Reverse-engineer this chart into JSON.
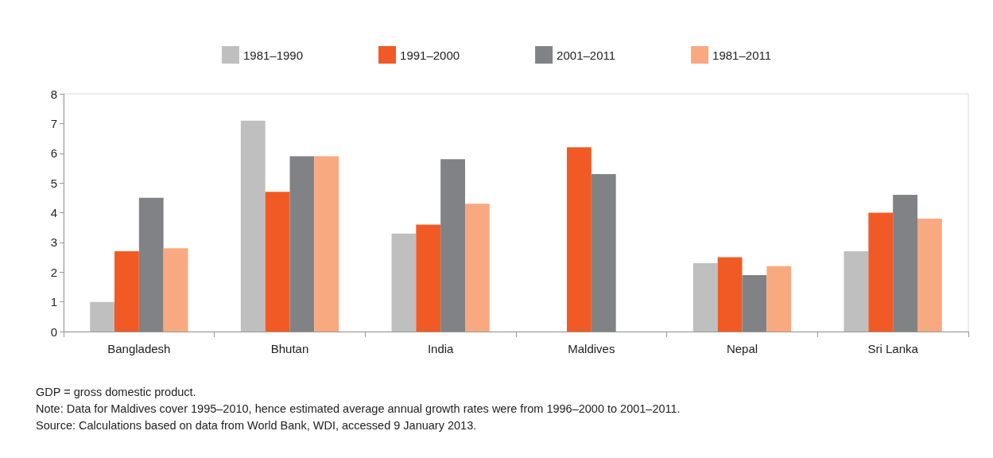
{
  "chart_data": {
    "type": "bar",
    "categories": [
      "Bangladesh",
      "Bhutan",
      "India",
      "Maldives",
      "Nepal",
      "Sri Lanka"
    ],
    "series": [
      {
        "name": "1981–1990",
        "color": "#bfbfc0",
        "values": [
          1.0,
          7.1,
          3.3,
          null,
          2.3,
          2.7
        ]
      },
      {
        "name": "1991–2000",
        "color": "#f15a24",
        "values": [
          2.7,
          4.7,
          3.6,
          6.2,
          2.5,
          4.0
        ]
      },
      {
        "name": "2001–2011",
        "color": "#818285",
        "values": [
          4.5,
          5.9,
          5.8,
          5.3,
          1.9,
          4.6
        ]
      },
      {
        "name": "1981–2011",
        "color": "#f9a980",
        "values": [
          2.8,
          5.9,
          4.3,
          null,
          2.2,
          3.8
        ]
      }
    ],
    "ylim": [
      0,
      8
    ],
    "yticks": [
      0,
      1,
      2,
      3,
      4,
      5,
      6,
      7,
      8
    ],
    "grid": false,
    "legend": "top",
    "annotations": [
      "GDP = gross domestic product.",
      "Note: Data for Maldives cover 1995–2010, hence estimated average annual growth rates were from 1996–2000 to 2001–2011.",
      "Source: Calculations based on data from World Bank, WDI, accessed 9 January 2013."
    ]
  }
}
